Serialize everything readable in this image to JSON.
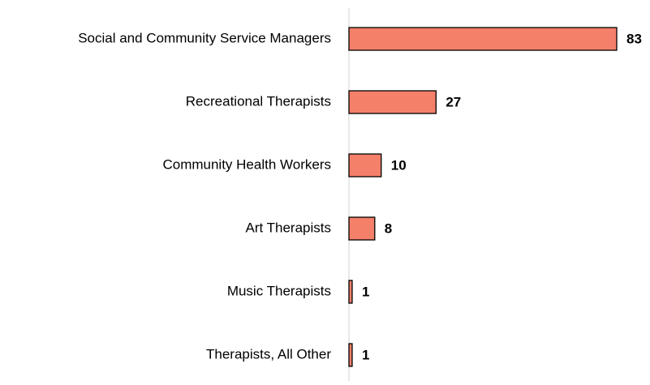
{
  "chart_data": {
    "type": "bar",
    "orientation": "horizontal",
    "categories": [
      "Social and Community Service Managers",
      "Recreational Therapists",
      "Community Health Workers",
      "Art Therapists",
      "Music Therapists",
      "Therapists, All Other"
    ],
    "values": [
      83,
      27,
      10,
      8,
      1,
      1
    ],
    "color": "#f4806a",
    "xlim": [
      0,
      83
    ]
  }
}
